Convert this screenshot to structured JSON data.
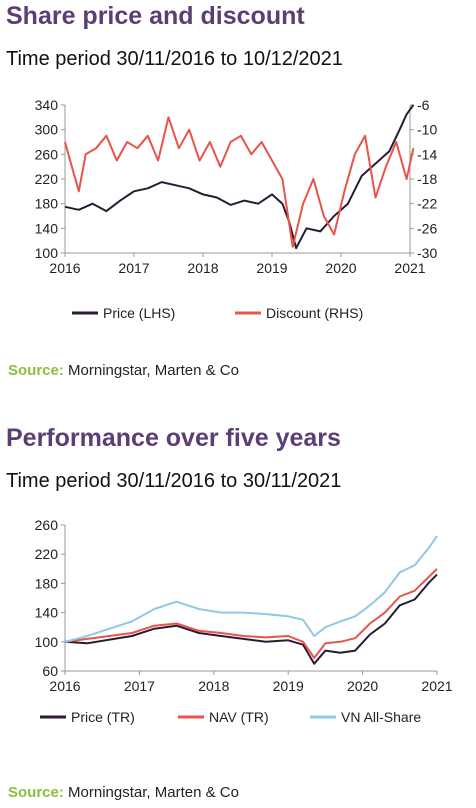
{
  "charts": [
    {
      "title": "Share price and discount",
      "subtitle": "Time period 30/11/2016 to 10/12/2021",
      "source_label": "Source:",
      "source_text": "Morningstar, Marten & Co"
    },
    {
      "title": "Performance over five years",
      "subtitle": "Time period 30/11/2016 to 30/11/2021",
      "source_label": "Source:",
      "source_text": "Morningstar, Marten & Co"
    }
  ],
  "colors": {
    "title": "#5b3f74",
    "source": "#8cbf3f",
    "price": "#2a1a33",
    "discount": "#e8534a",
    "nav": "#e8534a",
    "vn_all_share": "#8ec9e6"
  },
  "chart_data": [
    {
      "type": "line",
      "title": "Share price and discount",
      "xlabel": "",
      "ylabel": "",
      "x_ticks": [
        "2016",
        "2017",
        "2018",
        "2019",
        "2020",
        "2021"
      ],
      "y_left_ticks": [
        "340",
        "300",
        "260",
        "220",
        "180",
        "140",
        "100"
      ],
      "y_right_ticks": [
        "-6",
        "-10",
        "-14",
        "-18",
        "-22",
        "-26",
        "-30"
      ],
      "ylim_left": [
        100,
        340
      ],
      "ylim_right": [
        -30,
        -6
      ],
      "legend_position": "bottom",
      "series": [
        {
          "name": "Price (LHS)",
          "axis": "left",
          "color": "#2a1a33",
          "x": [
            2016.0,
            2016.2,
            2016.4,
            2016.6,
            2016.8,
            2017.0,
            2017.2,
            2017.4,
            2017.6,
            2017.8,
            2018.0,
            2018.2,
            2018.4,
            2018.6,
            2018.8,
            2019.0,
            2019.15,
            2019.25,
            2019.35,
            2019.5,
            2019.7,
            2019.9,
            2020.1,
            2020.3,
            2020.5,
            2020.7,
            2020.85,
            2020.95,
            2021.05
          ],
          "values": [
            175,
            170,
            180,
            168,
            185,
            200,
            205,
            215,
            210,
            205,
            195,
            190,
            178,
            185,
            180,
            195,
            180,
            150,
            108,
            140,
            135,
            160,
            180,
            225,
            245,
            265,
            300,
            325,
            340
          ]
        },
        {
          "name": "Discount (RHS)",
          "axis": "right",
          "color": "#e8534a",
          "x": [
            2016.0,
            2016.1,
            2016.2,
            2016.3,
            2016.45,
            2016.6,
            2016.75,
            2016.9,
            2017.05,
            2017.2,
            2017.35,
            2017.5,
            2017.65,
            2017.8,
            2017.95,
            2018.1,
            2018.25,
            2018.4,
            2018.55,
            2018.7,
            2018.85,
            2019.0,
            2019.15,
            2019.3,
            2019.45,
            2019.6,
            2019.75,
            2019.9,
            2020.05,
            2020.2,
            2020.35,
            2020.5,
            2020.65,
            2020.8,
            2020.95,
            2021.05
          ],
          "values": [
            -12,
            -16,
            -20,
            -14,
            -13,
            -11,
            -15,
            -12,
            -13,
            -11,
            -15,
            -8,
            -13,
            -10,
            -15,
            -12,
            -16,
            -12,
            -11,
            -14,
            -12,
            -15,
            -18,
            -29,
            -22,
            -18,
            -24,
            -27,
            -20,
            -14,
            -11,
            -21,
            -16,
            -12,
            -18,
            -13
          ]
        }
      ]
    },
    {
      "type": "line",
      "title": "Performance over five years",
      "xlabel": "",
      "ylabel": "",
      "x_ticks": [
        "2016",
        "2017",
        "2018",
        "2019",
        "2020",
        "2021"
      ],
      "y_ticks": [
        "260",
        "220",
        "180",
        "140",
        "100",
        "60"
      ],
      "ylim": [
        60,
        260
      ],
      "legend_position": "bottom",
      "series": [
        {
          "name": "Price (TR)",
          "color": "#2a1a33",
          "x": [
            2016.0,
            2016.3,
            2016.6,
            2016.9,
            2017.2,
            2017.5,
            2017.8,
            2018.1,
            2018.4,
            2018.7,
            2019.0,
            2019.2,
            2019.35,
            2019.5,
            2019.7,
            2019.9,
            2020.1,
            2020.3,
            2020.5,
            2020.7,
            2020.9,
            2021.0
          ],
          "values": [
            100,
            98,
            103,
            108,
            118,
            122,
            112,
            108,
            104,
            100,
            102,
            96,
            70,
            88,
            85,
            88,
            110,
            125,
            150,
            158,
            182,
            192
          ]
        },
        {
          "name": "NAV (TR)",
          "color": "#e8534a",
          "x": [
            2016.0,
            2016.3,
            2016.6,
            2016.9,
            2017.2,
            2017.5,
            2017.8,
            2018.1,
            2018.4,
            2018.7,
            2019.0,
            2019.2,
            2019.35,
            2019.5,
            2019.7,
            2019.9,
            2020.1,
            2020.3,
            2020.5,
            2020.7,
            2020.9,
            2021.0
          ],
          "values": [
            100,
            104,
            108,
            112,
            122,
            125,
            115,
            112,
            108,
            106,
            108,
            100,
            78,
            98,
            100,
            105,
            125,
            140,
            162,
            170,
            190,
            200
          ]
        },
        {
          "name": "VN All-Share",
          "color": "#8ec9e6",
          "x": [
            2016.0,
            2016.3,
            2016.6,
            2016.9,
            2017.2,
            2017.5,
            2017.8,
            2018.1,
            2018.4,
            2018.7,
            2019.0,
            2019.2,
            2019.35,
            2019.5,
            2019.7,
            2019.9,
            2020.1,
            2020.3,
            2020.5,
            2020.7,
            2020.9,
            2021.0
          ],
          "values": [
            100,
            108,
            118,
            128,
            145,
            155,
            145,
            140,
            140,
            138,
            135,
            130,
            108,
            120,
            128,
            135,
            150,
            168,
            195,
            205,
            230,
            245
          ]
        }
      ]
    }
  ]
}
